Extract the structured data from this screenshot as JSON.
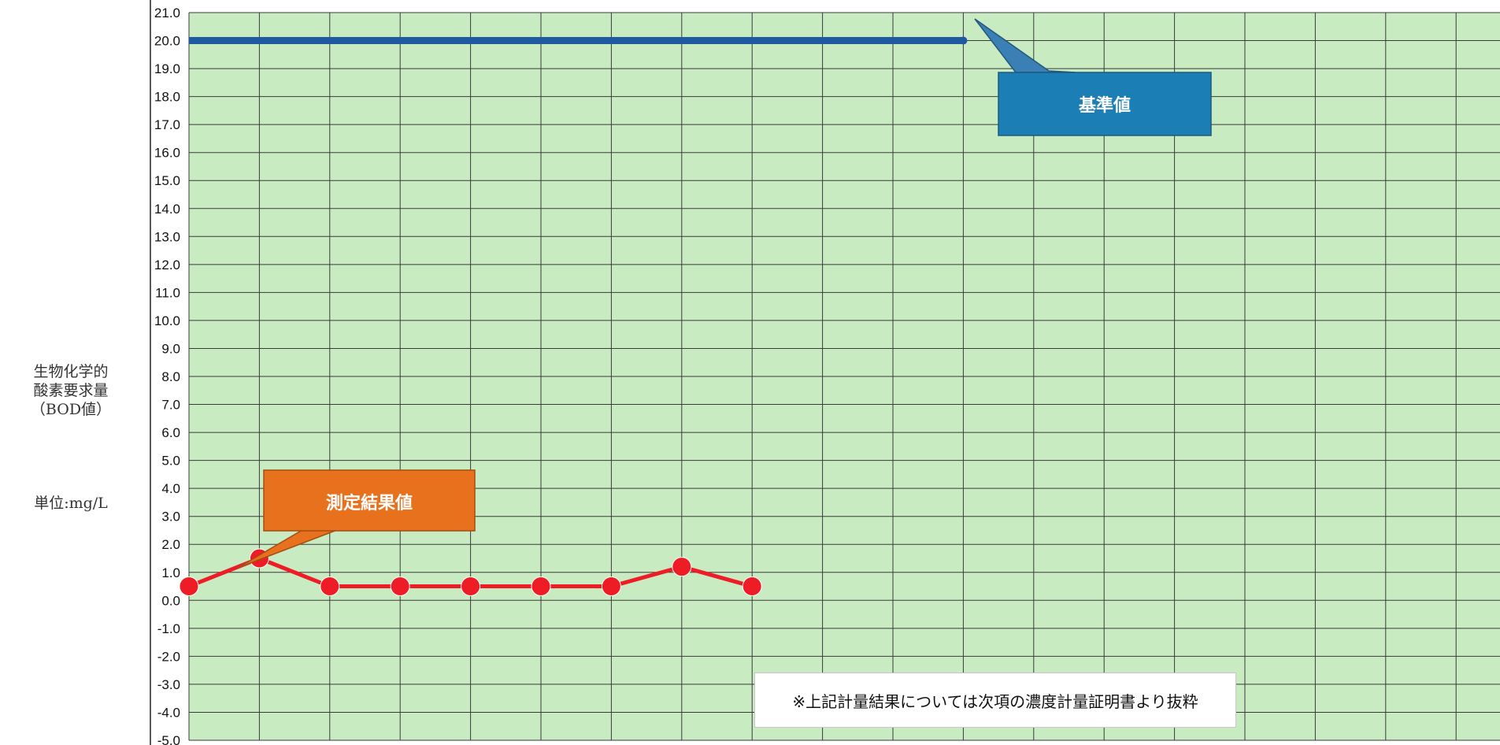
{
  "chart_data": {
    "type": "line",
    "ylabel_lines": [
      "生物化学的",
      "酸素要求量",
      "（BOD値）"
    ],
    "unit_label": "単位:mg/L",
    "ylim": [
      -5,
      21
    ],
    "yticks": [
      "21.0",
      "20.0",
      "19.0",
      "18.0",
      "17.0",
      "16.0",
      "15.0",
      "14.0",
      "13.0",
      "12.0",
      "11.0",
      "10.0",
      "9.0",
      "8.0",
      "7.0",
      "6.0",
      "5.0",
      "4.0",
      "3.0",
      "2.0",
      "1.0",
      "0.0",
      "-1.0",
      "-2.0",
      "-3.0",
      "-4.0",
      "-5.0"
    ],
    "x_count": 18,
    "grid": true,
    "series": [
      {
        "name": "基準値",
        "x": [
          0,
          11
        ],
        "values": [
          20,
          20
        ],
        "color": "#1f5aa0"
      },
      {
        "name": "測定結果値",
        "x": [
          0,
          1,
          2,
          3,
          4,
          5,
          6,
          7,
          8
        ],
        "values": [
          0.5,
          1.5,
          0.5,
          0.5,
          0.5,
          0.5,
          0.5,
          1.2,
          0.5
        ],
        "color": "#ee1c24"
      }
    ],
    "callouts": [
      {
        "text": "基準値",
        "fill": "#1b7fb5"
      },
      {
        "text": "測定結果値",
        "fill": "#e8711d"
      }
    ],
    "note": "※上記計量結果については次項の濃度計量証明書より抜粋",
    "plot_background": "#c8ebc2",
    "gridline_color": "#3a3a3a"
  }
}
